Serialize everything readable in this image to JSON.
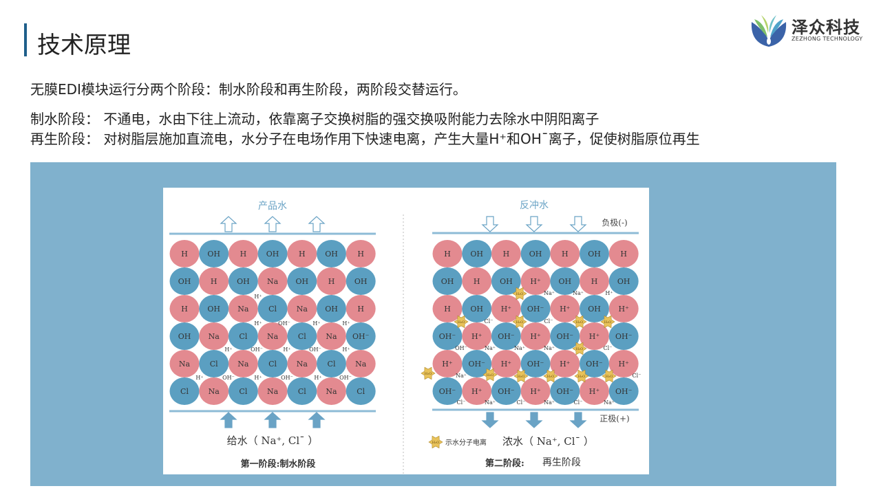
{
  "header": {
    "title": "技术原理",
    "logo": {
      "name_cn": "泽众科技",
      "name_en": "ZEZHONG TECHNOLOGY"
    }
  },
  "intro": "无膜EDI模块运行分两个阶段：制水阶段和再生阶段，两阶段交替运行。",
  "stages": [
    "制水阶段： 不通电，水由下往上流动，依靠离子交换树脂的强交换吸附能力去除水中阴阳离子",
    "再生阶段： 对树脂层施加直流电，水分子在电场作用下快速电离，产生大量H⁺和OH¯离子，促使树脂原位再生"
  ],
  "colors": {
    "panel": "#80b1cd",
    "cation": "#e38a90",
    "anion": "#5b9fc1",
    "line": "#8dbbd6",
    "arrow": "#6aa3c5",
    "star": "#e8c25a"
  },
  "diagram": {
    "left": {
      "top_label": "产品水",
      "bottom_label": "给水（  Na⁺, Cl¯  ）",
      "caption": "第一阶段:制水阶段",
      "grid": [
        [
          "H",
          "OH",
          "H",
          "OH",
          "H",
          "OH",
          "H"
        ],
        [
          "OH",
          "H",
          "OH",
          "Na",
          "OH",
          "H",
          "OH"
        ],
        [
          "H",
          "OH",
          "Na",
          "Cl",
          "Na",
          "OH",
          "H"
        ],
        [
          "OH",
          "Na",
          "Cl",
          "Na",
          "Cl",
          "Na",
          "OH⁻"
        ],
        [
          "Na",
          "Cl",
          "Na",
          "Cl",
          "Na",
          "Cl",
          "Na"
        ],
        [
          "Cl",
          "Na",
          "Cl",
          "Na",
          "Cl",
          "Na",
          "Cl"
        ]
      ],
      "ions": [
        "H⁺",
        "H⁺",
        "OH⁻",
        "H⁺",
        "H⁺",
        "H⁺",
        "OH⁻",
        "H⁺",
        "OH⁻",
        "H⁺",
        "H⁺",
        "OH⁻",
        "H⁺",
        "OH⁻",
        "H⁺",
        "OH⁻"
      ]
    },
    "right": {
      "top_label": "反冲水",
      "cathode": "负极(-)",
      "anode": "正极(+)",
      "legend": "示水分子电离",
      "bottom_label": "浓水（  Na⁺, Cl¯  ）",
      "caption_a": "第二阶段:",
      "caption_b": "再生阶段",
      "star_label": "H₂O",
      "grid": [
        [
          "H",
          "OH",
          "H",
          "OH",
          "H",
          "OH",
          "H"
        ],
        [
          "OH",
          "H",
          "OH",
          "H⁺",
          "OH",
          "H",
          "OH"
        ],
        [
          "H",
          "OH",
          "H⁺",
          "OH⁻",
          "H⁺",
          "OH",
          "H⁺"
        ],
        [
          "OH⁻",
          "H⁺",
          "OH⁻",
          "H⁺",
          "OH⁻",
          "H⁺",
          "OH⁻"
        ],
        [
          "H⁺",
          "OH⁻",
          "H⁺",
          "OH⁻",
          "H⁺",
          "OH⁻",
          "H⁺"
        ],
        [
          "OH⁻",
          "H⁺",
          "OH⁻",
          "H⁺",
          "OH⁻",
          "H⁺",
          "OH⁻"
        ]
      ],
      "ions": [
        "Na⁺",
        "Na⁺",
        "H⁺",
        "Cl⁻",
        "Cl⁻",
        "OH⁻",
        "Na⁺",
        "Na⁺",
        "Na⁺",
        "Cl⁻",
        "Na⁺",
        "Cl⁻",
        "Cl⁻",
        "Na⁺",
        "Cl⁻",
        "Na⁺",
        "Cl⁻",
        "Na⁺"
      ]
    }
  }
}
